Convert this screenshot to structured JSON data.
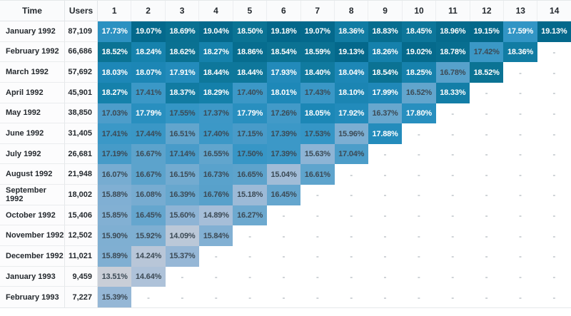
{
  "chart_data": {
    "type": "heatmap",
    "columns": [
      "Time",
      "Users",
      "1",
      "2",
      "3",
      "4",
      "5",
      "6",
      "7",
      "8",
      "9",
      "10",
      "11",
      "12",
      "13",
      "14"
    ],
    "empty_cell": "-",
    "value_suffix": "%",
    "value_min": 13.51,
    "value_max": 19.18,
    "cohorts": [
      {
        "time": "January 1992",
        "users": "87,109",
        "values": [
          17.73,
          19.07,
          18.69,
          19.04,
          18.5,
          19.18,
          19.07,
          18.36,
          18.83,
          18.45,
          18.96,
          19.15,
          17.59,
          19.13
        ]
      },
      {
        "time": "February 1992",
        "users": "66,686",
        "values": [
          18.52,
          18.24,
          18.62,
          18.27,
          18.86,
          18.54,
          18.59,
          19.13,
          18.26,
          19.02,
          18.78,
          17.42,
          18.36
        ]
      },
      {
        "time": "March 1992",
        "users": "57,692",
        "values": [
          18.03,
          18.07,
          17.91,
          18.44,
          18.44,
          17.93,
          18.4,
          18.04,
          18.54,
          18.25,
          16.78,
          18.52
        ]
      },
      {
        "time": "April 1992",
        "users": "45,901",
        "values": [
          18.27,
          17.41,
          18.37,
          18.29,
          17.4,
          18.01,
          17.43,
          18.1,
          17.99,
          16.52,
          18.33
        ]
      },
      {
        "time": "May 1992",
        "users": "38,850",
        "values": [
          17.03,
          17.79,
          17.55,
          17.37,
          17.79,
          17.26,
          18.05,
          17.92,
          16.37,
          17.8
        ]
      },
      {
        "time": "June 1992",
        "users": "31,405",
        "values": [
          17.41,
          17.44,
          16.51,
          17.4,
          17.15,
          17.39,
          17.53,
          15.96,
          17.88
        ]
      },
      {
        "time": "July 1992",
        "users": "26,681",
        "values": [
          17.19,
          16.67,
          17.14,
          16.55,
          17.5,
          17.39,
          15.63,
          17.04
        ]
      },
      {
        "time": "August 1992",
        "users": "21,948",
        "values": [
          16.07,
          16.67,
          16.15,
          16.73,
          16.65,
          15.04,
          16.61
        ]
      },
      {
        "time": "September 1992",
        "users": "18,002",
        "values": [
          15.88,
          16.08,
          16.39,
          16.76,
          15.18,
          16.45
        ]
      },
      {
        "time": "October 1992",
        "users": "15,406",
        "values": [
          15.85,
          16.45,
          15.6,
          14.89,
          16.27
        ]
      },
      {
        "time": "November 1992",
        "users": "12,502",
        "values": [
          15.9,
          15.92,
          14.09,
          15.84
        ]
      },
      {
        "time": "December 1992",
        "users": "11,021",
        "values": [
          15.89,
          14.24,
          15.37
        ]
      },
      {
        "time": "January 1993",
        "users": "9,459",
        "values": [
          13.51,
          14.64
        ]
      },
      {
        "time": "February 1993",
        "users": "7,227",
        "values": [
          15.39
        ]
      }
    ],
    "style": {
      "color_scale_stops": [
        [
          13.51,
          "#c9ced7"
        ],
        [
          14.7,
          "#adc1d9"
        ],
        [
          15.6,
          "#8eb4d5"
        ],
        [
          16.4,
          "#67a7ce"
        ],
        [
          17.1,
          "#4a9cc9"
        ],
        [
          17.6,
          "#3295c5"
        ],
        [
          18.0,
          "#1e88b8"
        ],
        [
          18.3,
          "#1480aa"
        ],
        [
          18.5,
          "#0b7394"
        ],
        [
          19.18,
          "#03678a"
        ]
      ],
      "white_text_min": 17.57,
      "cell_text_dark": "#3c4a55",
      "cell_text_light": "#ffffff",
      "empty_text_color": "#9aa3ab"
    }
  }
}
